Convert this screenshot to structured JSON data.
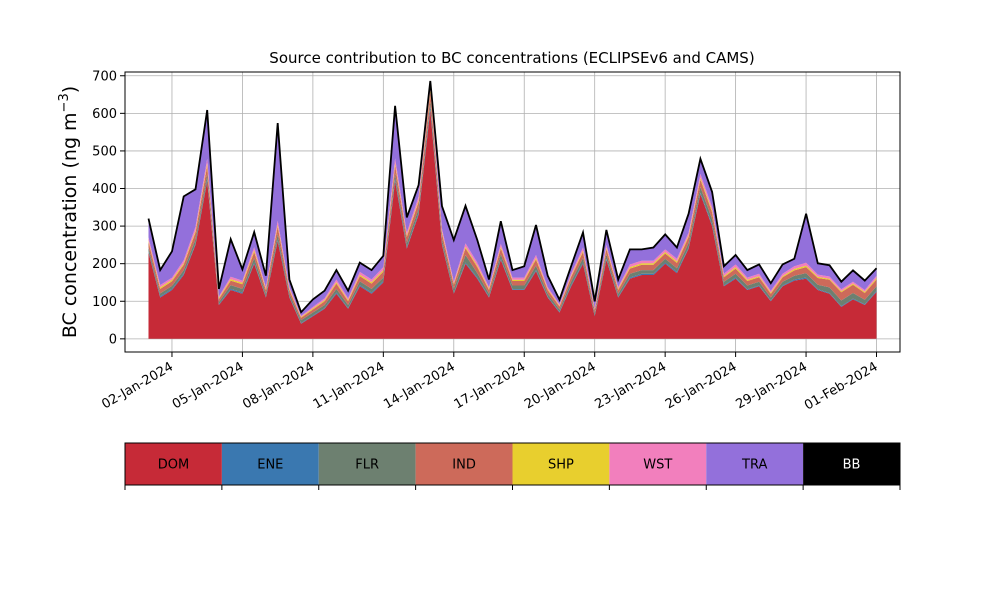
{
  "chart_data": {
    "type": "area",
    "stacked": true,
    "title": "Source contribution to BC concentrations (ECLIPSEv6 and CAMS)",
    "ylabel": "BC concentration (ng m",
    "ylabel_superscript": "−3",
    "ylabel_suffix": ")",
    "xlabel": "",
    "ylim": [
      -35,
      710
    ],
    "xlim": [
      "2023-12-31",
      "2024-02-02"
    ],
    "grid": true,
    "yticks": [
      "0",
      "100",
      "200",
      "300",
      "400",
      "500",
      "600",
      "700"
    ],
    "xticks": [
      "02-Jan-2024",
      "05-Jan-2024",
      "08-Jan-2024",
      "11-Jan-2024",
      "14-Jan-2024",
      "17-Jan-2024",
      "20-Jan-2024",
      "23-Jan-2024",
      "26-Jan-2024",
      "29-Jan-2024",
      "01-Feb-2024"
    ],
    "x": [
      "2024-01-01",
      "2024-01-01T12",
      "2024-01-02",
      "2024-01-02T12",
      "2024-01-03",
      "2024-01-03T12",
      "2024-01-04",
      "2024-01-04T12",
      "2024-01-05",
      "2024-01-05T12",
      "2024-01-06",
      "2024-01-06T12",
      "2024-01-07",
      "2024-01-07T12",
      "2024-01-08",
      "2024-01-08T12",
      "2024-01-09",
      "2024-01-09T12",
      "2024-01-10",
      "2024-01-10T12",
      "2024-01-11",
      "2024-01-11T12",
      "2024-01-12",
      "2024-01-12T12",
      "2024-01-13",
      "2024-01-13T12",
      "2024-01-14",
      "2024-01-14T12",
      "2024-01-15",
      "2024-01-15T12",
      "2024-01-16",
      "2024-01-16T12",
      "2024-01-17",
      "2024-01-17T12",
      "2024-01-18",
      "2024-01-18T12",
      "2024-01-19",
      "2024-01-19T12",
      "2024-01-20",
      "2024-01-20T12",
      "2024-01-21",
      "2024-01-21T12",
      "2024-01-22",
      "2024-01-22T12",
      "2024-01-23",
      "2024-01-23T12",
      "2024-01-24",
      "2024-01-24T12",
      "2024-01-25",
      "2024-01-25T12",
      "2024-01-26",
      "2024-01-26T12",
      "2024-01-27",
      "2024-01-27T12",
      "2024-01-28",
      "2024-01-28T12",
      "2024-01-29",
      "2024-01-29T12",
      "2024-01-30",
      "2024-01-30T12",
      "2024-01-31",
      "2024-01-31T12",
      "2024-02-01"
    ],
    "series": [
      {
        "name": "DOM",
        "color": "#c62a37",
        "values": [
          230,
          110,
          130,
          170,
          250,
          420,
          90,
          130,
          120,
          200,
          110,
          260,
          110,
          40,
          60,
          80,
          120,
          80,
          140,
          120,
          150,
          420,
          240,
          330,
          610,
          250,
          120,
          200,
          160,
          110,
          210,
          130,
          130,
          180,
          110,
          70,
          140,
          200,
          60,
          210,
          110,
          160,
          170,
          170,
          200,
          175,
          240,
          385,
          300,
          140,
          160,
          130,
          140,
          100,
          140,
          155,
          160,
          130,
          120,
          85,
          105,
          90,
          125
        ]
      },
      {
        "name": "ENE",
        "color": "#3a78b0",
        "values": [
          3,
          3,
          3,
          3,
          3,
          4,
          2,
          3,
          3,
          3,
          2,
          4,
          2,
          2,
          2,
          2,
          3,
          2,
          3,
          3,
          3,
          5,
          3,
          4,
          6,
          3,
          2,
          3,
          3,
          2,
          3,
          2,
          2,
          3,
          2,
          2,
          3,
          3,
          2,
          3,
          2,
          3,
          3,
          3,
          3,
          3,
          3,
          4,
          4,
          2,
          3,
          2,
          2,
          2,
          2,
          3,
          3,
          2,
          2,
          2,
          2,
          2,
          3
        ]
      },
      {
        "name": "FLR",
        "color": "#6d8070",
        "values": [
          10,
          8,
          8,
          10,
          12,
          15,
          6,
          10,
          10,
          12,
          8,
          15,
          8,
          8,
          8,
          8,
          10,
          8,
          10,
          10,
          10,
          15,
          12,
          12,
          15,
          12,
          10,
          20,
          12,
          8,
          12,
          10,
          10,
          12,
          8,
          6,
          10,
          12,
          6,
          12,
          8,
          10,
          10,
          10,
          10,
          10,
          12,
          15,
          15,
          10,
          10,
          10,
          10,
          8,
          10,
          10,
          12,
          12,
          15,
          15,
          15,
          12,
          12
        ]
      },
      {
        "name": "IND",
        "color": "#cd6a5a",
        "values": [
          15,
          12,
          12,
          14,
          18,
          22,
          8,
          12,
          12,
          16,
          10,
          20,
          10,
          6,
          8,
          10,
          14,
          10,
          14,
          14,
          16,
          22,
          16,
          18,
          25,
          16,
          12,
          18,
          16,
          10,
          16,
          12,
          12,
          16,
          10,
          8,
          12,
          16,
          8,
          14,
          10,
          14,
          14,
          14,
          14,
          14,
          16,
          20,
          18,
          12,
          14,
          12,
          12,
          10,
          12,
          14,
          16,
          18,
          20,
          22,
          22,
          18,
          18
        ]
      },
      {
        "name": "SHP",
        "color": "#e8cf2e",
        "values": [
          4,
          4,
          4,
          4,
          5,
          6,
          3,
          4,
          4,
          5,
          3,
          5,
          3,
          2,
          3,
          3,
          4,
          3,
          4,
          4,
          4,
          6,
          4,
          5,
          6,
          4,
          3,
          4,
          4,
          3,
          4,
          3,
          3,
          4,
          3,
          2,
          3,
          4,
          2,
          4,
          3,
          4,
          4,
          4,
          4,
          4,
          4,
          5,
          5,
          3,
          4,
          3,
          3,
          3,
          3,
          4,
          4,
          3,
          3,
          3,
          3,
          3,
          4
        ]
      },
      {
        "name": "WST",
        "color": "#f27fbd",
        "values": [
          8,
          6,
          6,
          8,
          10,
          12,
          4,
          6,
          6,
          8,
          5,
          10,
          5,
          3,
          4,
          5,
          7,
          5,
          7,
          7,
          8,
          12,
          8,
          10,
          14,
          8,
          6,
          9,
          8,
          5,
          8,
          6,
          6,
          8,
          5,
          4,
          6,
          8,
          4,
          7,
          5,
          7,
          7,
          7,
          7,
          7,
          8,
          10,
          9,
          6,
          7,
          6,
          6,
          5,
          6,
          7,
          8,
          6,
          6,
          5,
          5,
          5,
          6
        ]
      },
      {
        "name": "TRA",
        "color": "#9370db",
        "values": [
          50,
          40,
          70,
          170,
          100,
          130,
          20,
          100,
          30,
          40,
          30,
          260,
          20,
          10,
          20,
          20,
          25,
          20,
          25,
          25,
          30,
          140,
          40,
          30,
          10,
          60,
          110,
          100,
          60,
          20,
          60,
          20,
          30,
          80,
          30,
          12,
          20,
          40,
          18,
          40,
          20,
          40,
          30,
          35,
          40,
          30,
          50,
          40,
          40,
          20,
          25,
          20,
          25,
          20,
          25,
          20,
          130,
          30,
          30,
          20,
          30,
          25,
          20
        ]
      },
      {
        "name": "BB",
        "color": "#000000",
        "values": [
          0,
          0,
          0,
          0,
          0,
          0,
          0,
          0,
          0,
          0,
          0,
          0,
          0,
          0,
          0,
          0,
          0,
          0,
          0,
          0,
          0,
          0,
          0,
          0,
          0,
          0,
          0,
          0,
          0,
          0,
          0,
          0,
          0,
          0,
          0,
          0,
          0,
          0,
          0,
          0,
          0,
          0,
          0,
          0,
          0,
          0,
          0,
          0,
          0,
          0,
          0,
          0,
          0,
          0,
          0,
          0,
          0,
          0,
          0,
          0,
          0,
          0,
          0
        ]
      }
    ],
    "total_outline": {
      "color": "#000000"
    },
    "legend": {
      "placement": "bottom",
      "style": "color-bar",
      "text_color_on_dark": "#ffffff"
    }
  }
}
